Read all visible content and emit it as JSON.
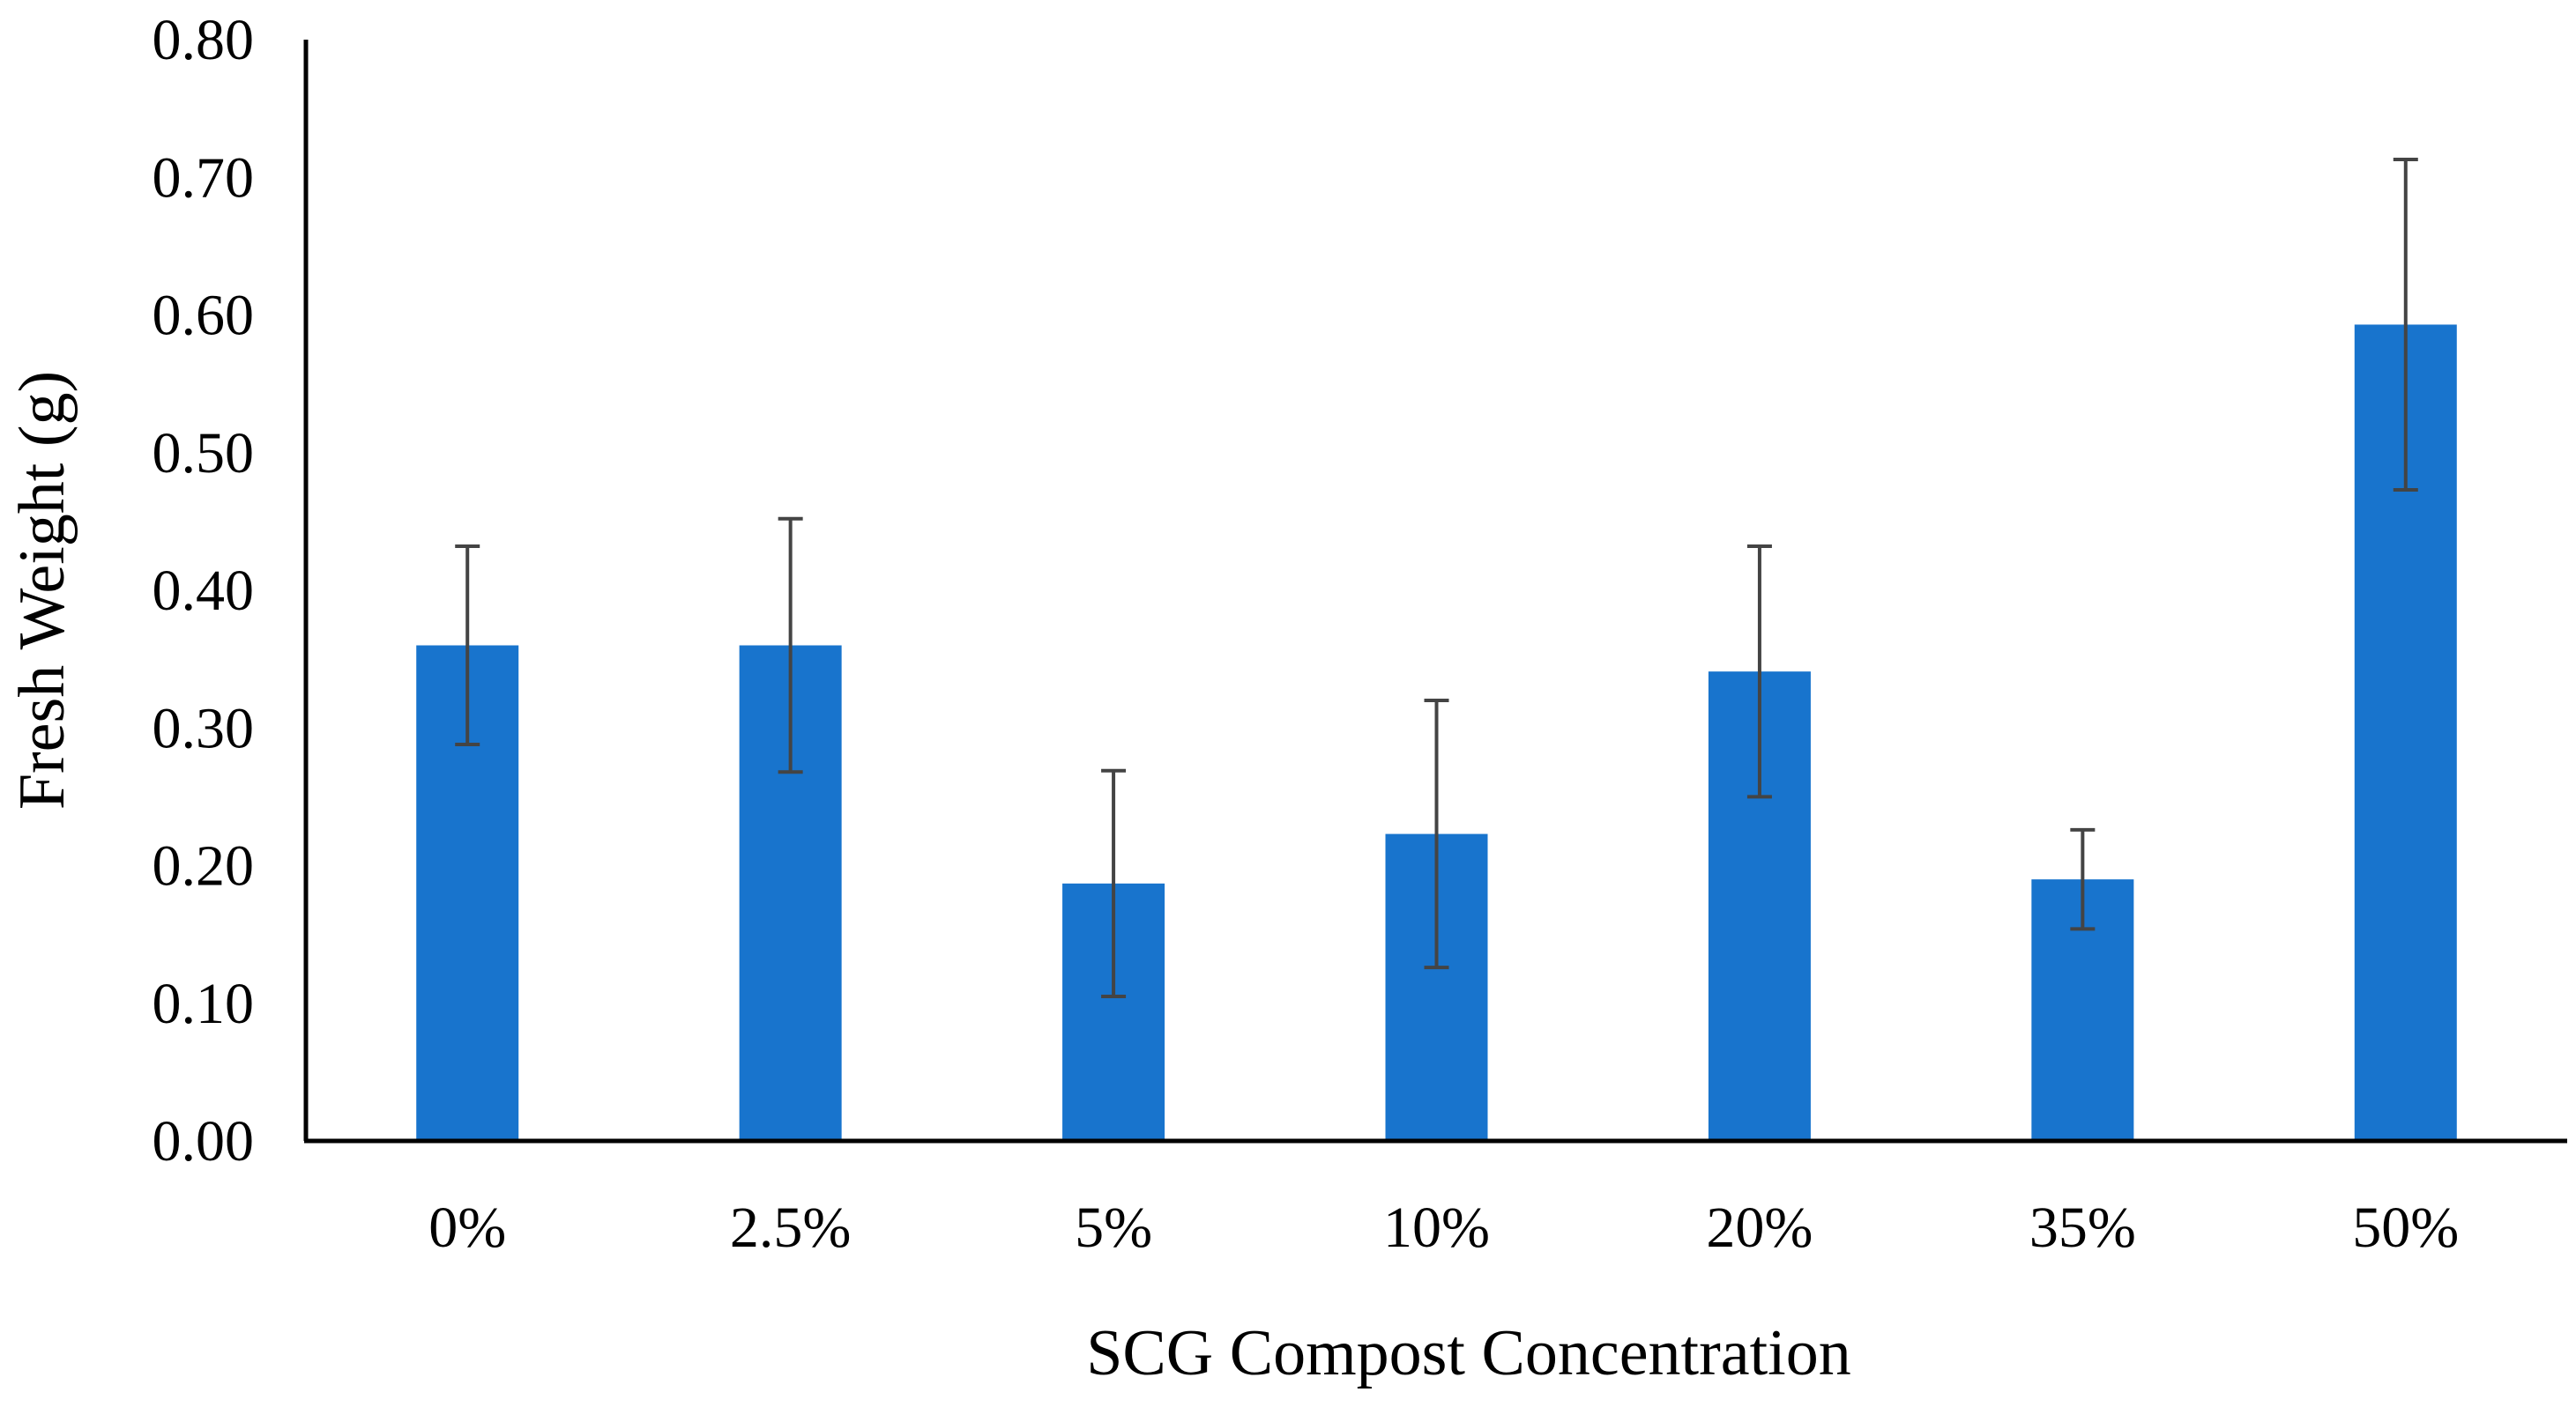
{
  "chart_data": {
    "type": "bar",
    "title": "",
    "xlabel": "SCG Compost Concentration",
    "ylabel": "Fresh Weight (g)",
    "categories": [
      "0%",
      "2.5%",
      "5%",
      "10%",
      "20%",
      "35%",
      "50%"
    ],
    "values": [
      0.36,
      0.36,
      0.187,
      0.223,
      0.341,
      0.19,
      0.593
    ],
    "error": [
      0.072,
      0.092,
      0.082,
      0.097,
      0.091,
      0.036,
      0.12
    ],
    "ylim": [
      0,
      0.8
    ],
    "yticks": [
      "0.00",
      "0.10",
      "0.20",
      "0.30",
      "0.40",
      "0.50",
      "0.60",
      "0.70",
      "0.80"
    ],
    "ytick_values": [
      0,
      0.1,
      0.2,
      0.3,
      0.4,
      0.5,
      0.6,
      0.7,
      0.8
    ],
    "grid": false,
    "legend": "none",
    "bar_color": "#1874CD",
    "error_color": "#444444"
  }
}
